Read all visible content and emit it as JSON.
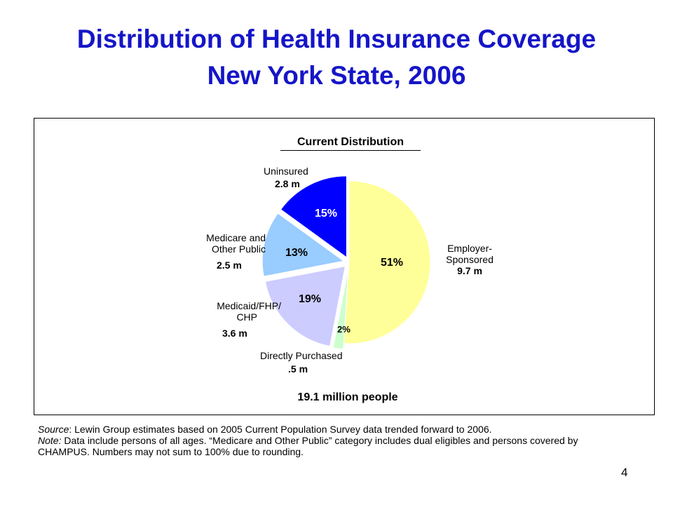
{
  "slide": {
    "title_line1": "Distribution of Health Insurance Coverage",
    "title_line2": "New York State, 2006",
    "page_number": "4"
  },
  "footnote": {
    "source_label": "Source",
    "source_text": ": Lewin Group estimates based on 2005 Current Population Survey data trended forward to 2006.",
    "note_label": "Note:",
    "note_text": " Data include persons of all ages. “Medicare and Other Public” category includes dual eligibles and persons covered by CHAMPUS. Numbers may not sum to 100% due to rounding."
  },
  "chart_data": {
    "type": "pie",
    "title": "Current Distribution",
    "total_label": "19.1 million people",
    "slices": [
      {
        "name_lines": [
          "Employer-",
          "Sponsored"
        ],
        "amount": "9.7 m",
        "percent": 51,
        "percent_label": "51%",
        "color": "#ffff99"
      },
      {
        "name_lines": [
          "Directly Purchased"
        ],
        "amount": ".5 m",
        "percent": 2,
        "percent_label": "2%",
        "color": "#ccffcc"
      },
      {
        "name_lines": [
          "Medicaid/FHP/",
          "CHP"
        ],
        "amount": "3.6 m",
        "percent": 19,
        "percent_label": "19%",
        "color": "#ccccff"
      },
      {
        "name_lines": [
          "Medicare and",
          "Other Public"
        ],
        "amount": "2.5 m",
        "percent": 13,
        "percent_label": "13%",
        "color": "#99ccff"
      },
      {
        "name_lines": [
          "Uninsured"
        ],
        "amount": "2.8 m",
        "percent": 15,
        "percent_label": "15%",
        "color": "#0000ff"
      }
    ]
  }
}
